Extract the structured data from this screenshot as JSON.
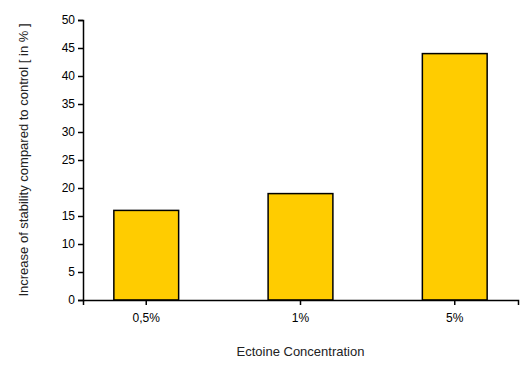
{
  "chart_data": {
    "type": "bar",
    "x_label": "Ectoine Concentration",
    "y_label": "Increase of stability compared to control [ in % ]",
    "categories": [
      "0,5%",
      "1%",
      "5%"
    ],
    "values": [
      16,
      19,
      44
    ],
    "color": "#ffcc00",
    "ylim": [
      0,
      50
    ],
    "yticks": [
      0,
      5,
      10,
      15,
      20,
      25,
      30,
      35,
      40,
      45,
      50
    ],
    "grid": false
  }
}
